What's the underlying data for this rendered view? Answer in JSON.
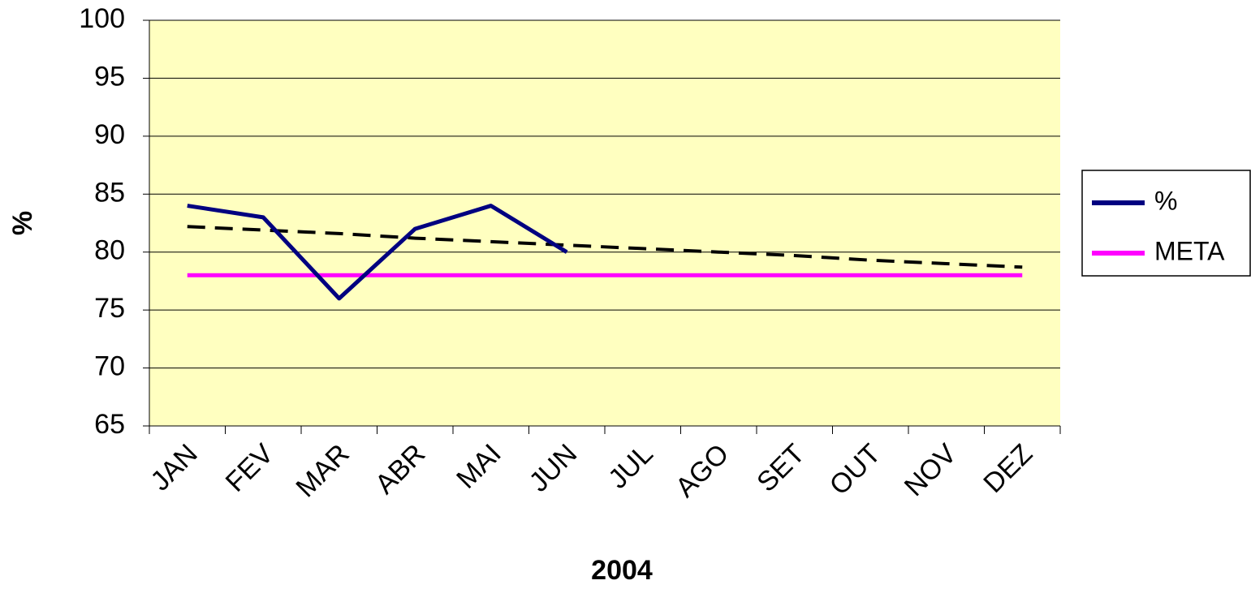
{
  "chart_data": {
    "type": "line",
    "x_label": "2004",
    "y_label": "%",
    "categories": [
      "JAN",
      "FEV",
      "MAR",
      "ABR",
      "MAI",
      "JUN",
      "JUL",
      "AGO",
      "SET",
      "OUT",
      "NOV",
      "DEZ"
    ],
    "series": [
      {
        "name": "%",
        "color": "#000080",
        "values": [
          84,
          83,
          76,
          82,
          84,
          80,
          null,
          null,
          null,
          null,
          null,
          null
        ]
      },
      {
        "name": "META",
        "color": "#ff00ff",
        "values": [
          78,
          78,
          78,
          78,
          78,
          78,
          78,
          78,
          78,
          78,
          78,
          78
        ]
      }
    ],
    "trendline": {
      "color": "#000000",
      "dashed": true,
      "values": [
        82.2,
        81.9,
        81.6,
        81.2,
        80.9,
        80.6,
        80.3,
        80.0,
        79.7,
        79.3,
        79.0,
        78.7
      ]
    },
    "ylim": [
      65,
      100
    ],
    "yticks": [
      65,
      70,
      75,
      80,
      85,
      90,
      95,
      100
    ],
    "grid": true,
    "plot_background": "#ffffc0",
    "legend": "right"
  }
}
